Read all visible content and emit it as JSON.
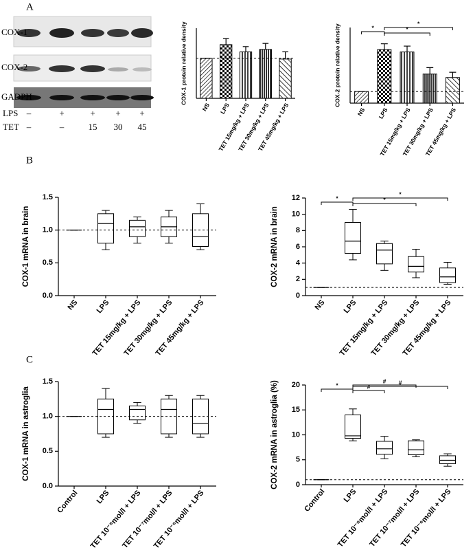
{
  "panels": [
    "A",
    "B",
    "C"
  ],
  "blot": {
    "bands": [
      "COX-1",
      "COX-2",
      "GADPH"
    ],
    "treatments": [
      {
        "name": "LPS",
        "lanes": [
          "–",
          "+",
          "+",
          "+",
          "+"
        ]
      },
      {
        "name": "TET",
        "lanes": [
          "–",
          "–",
          "15",
          "30",
          "45"
        ]
      }
    ]
  },
  "chart_data": [
    {
      "type": "bar",
      "y_label": "COX-1 protein relative density",
      "categories": [
        "NS",
        "LPS",
        "TET 15mg/kg + LPS",
        "TET 30mg/kg + LPS",
        "TET 45mg/kg + LPS"
      ],
      "values": [
        1,
        1.34,
        1.16,
        1.22,
        0.98
      ],
      "errors": [
        0,
        0.15,
        0.13,
        0.15,
        0.18
      ],
      "ylim": [
        0,
        1.75
      ],
      "ref_line": 1,
      "color": "#000000"
    },
    {
      "type": "bar",
      "y_label": "COX-2 protein relative density",
      "categories": [
        "NS",
        "LPS",
        "TET 15mg/kg + LPS",
        "TET 30mg/kg + LPS",
        "TET 45mg/kg + LPS"
      ],
      "values": [
        1,
        4.6,
        4.4,
        2.5,
        2.2
      ],
      "errors": [
        0,
        0.5,
        0.5,
        0.55,
        0.45
      ],
      "ylim": [
        0,
        6.5
      ],
      "ref_line": 1,
      "color": "#000000",
      "brackets": [
        {
          "from": "NS",
          "to": "LPS",
          "label": "*"
        },
        {
          "from": "LPS",
          "to": "TET 30mg/kg + LPS",
          "label": "*"
        },
        {
          "from": "LPS",
          "to": "TET 45mg/kg + LPS",
          "label": "*"
        }
      ]
    },
    {
      "type": "box",
      "y_label": "COX-1 mRNA in brain",
      "categories": [
        "NS",
        "LPS",
        "TET 15mg/kg + LPS",
        "TET 30mg/kg + LPS",
        "TET 45mg/kg + LPS"
      ],
      "boxes": [
        {
          "min": 1,
          "q1": 1,
          "median": 1,
          "q3": 1,
          "max": 1
        },
        {
          "min": 0.7,
          "q1": 0.8,
          "median": 1.1,
          "q3": 1.25,
          "max": 1.3
        },
        {
          "min": 0.8,
          "q1": 0.9,
          "median": 1.05,
          "q3": 1.15,
          "max": 1.2
        },
        {
          "min": 0.8,
          "q1": 0.9,
          "median": 1.05,
          "q3": 1.2,
          "max": 1.3
        },
        {
          "min": 0.7,
          "q1": 0.75,
          "median": 0.9,
          "q3": 1.25,
          "max": 1.4
        }
      ],
      "ylim": [
        0,
        1.5
      ],
      "yticks": [
        {
          "value": 0,
          "label": "0.0"
        },
        0.5,
        {
          "value": 1,
          "label": "1.0"
        },
        1.5
      ],
      "ref_line": 1
    },
    {
      "type": "box",
      "y_label": "COX-2 mRNA in brain",
      "categories": [
        "NS",
        "LPS",
        "TET 15mg/kg + LPS",
        "TET 30mg/kg + LPS",
        "TET 45mg/kg + LPS"
      ],
      "boxes": [
        {
          "min": 1,
          "q1": 1,
          "median": 1,
          "q3": 1,
          "max": 1
        },
        {
          "min": 4.4,
          "q1": 5.2,
          "median": 6.7,
          "q3": 9.0,
          "max": 10.6
        },
        {
          "min": 3.1,
          "q1": 3.9,
          "median": 5.6,
          "q3": 6.4,
          "max": 6.7
        },
        {
          "min": 2.2,
          "q1": 2.9,
          "median": 3.6,
          "q3": 4.8,
          "max": 5.7
        },
        {
          "min": 1.4,
          "q1": 1.6,
          "median": 2.3,
          "q3": 3.4,
          "max": 4.1
        }
      ],
      "ylim": [
        0,
        12
      ],
      "yticks": [
        0,
        2,
        4,
        6,
        8,
        10,
        12
      ],
      "ref_line": 1,
      "brackets": [
        {
          "from": "NS",
          "to": "LPS",
          "label": "*"
        },
        {
          "from": "LPS",
          "to": "TET 30mg/kg + LPS",
          "label": "*"
        },
        {
          "from": "LPS",
          "to": "TET 45mg/kg + LPS",
          "label": "*"
        }
      ]
    },
    {
      "type": "box",
      "y_label": "COX-1 mRNA in astroglia",
      "categories": [
        "Control",
        "LPS",
        "TET 10⁻⁸mol/l + LPS",
        "TET 10⁻⁷mol/l + LPS",
        "TET 10⁻⁶mol/l + LPS"
      ],
      "boxes": [
        {
          "min": 1,
          "q1": 1,
          "median": 1,
          "q3": 1,
          "max": 1
        },
        {
          "min": 0.7,
          "q1": 0.75,
          "median": 1.1,
          "q3": 1.25,
          "max": 1.4
        },
        {
          "min": 0.9,
          "q1": 0.95,
          "median": 1.1,
          "q3": 1.15,
          "max": 1.2
        },
        {
          "min": 0.7,
          "q1": 0.75,
          "median": 1.1,
          "q3": 1.25,
          "max": 1.3
        },
        {
          "min": 0.7,
          "q1": 0.75,
          "median": 0.9,
          "q3": 1.25,
          "max": 1.3
        }
      ],
      "ylim": [
        0,
        1.5
      ],
      "yticks": [
        {
          "value": 0,
          "label": "0.0"
        },
        0.5,
        {
          "value": 1,
          "label": "1.0"
        },
        1.5
      ],
      "ref_line": 1
    },
    {
      "type": "box",
      "y_label": "COX-2 mRNA in astroglia (%)",
      "categories": [
        "Control",
        "LPS",
        "TET 10⁻⁸mol/l + LPS",
        "TET 10⁻⁷mol/l + LPS",
        "TET 10⁻⁶mol/l + LPS"
      ],
      "boxes": [
        {
          "min": 1,
          "q1": 1,
          "median": 1,
          "q3": 1,
          "max": 1
        },
        {
          "min": 8.8,
          "q1": 9.3,
          "median": 9.8,
          "q3": 14,
          "max": 15.2
        },
        {
          "min": 5.2,
          "q1": 6.1,
          "median": 7.2,
          "q3": 8.7,
          "max": 9.7
        },
        {
          "min": 5.6,
          "q1": 6,
          "median": 7,
          "q3": 8.8,
          "max": 9
        },
        {
          "min": 3.7,
          "q1": 4.2,
          "median": 4.9,
          "q3": 5.8,
          "max": 6.2
        }
      ],
      "ylim": [
        0,
        20
      ],
      "yticks": [
        0,
        5,
        10,
        15,
        20
      ],
      "ref_line": 1,
      "brackets": [
        {
          "from": "Control",
          "to": "LPS",
          "label": "*"
        },
        {
          "from": "LPS",
          "to": "TET 10⁻⁸mol/l + LPS",
          "label": "#"
        },
        {
          "from": "LPS",
          "to": "TET 10⁻⁷mol/l + LPS",
          "label": "#"
        },
        {
          "from": "LPS",
          "to": "TET 10⁻⁶mol/l + LPS",
          "label": "#"
        }
      ]
    }
  ]
}
